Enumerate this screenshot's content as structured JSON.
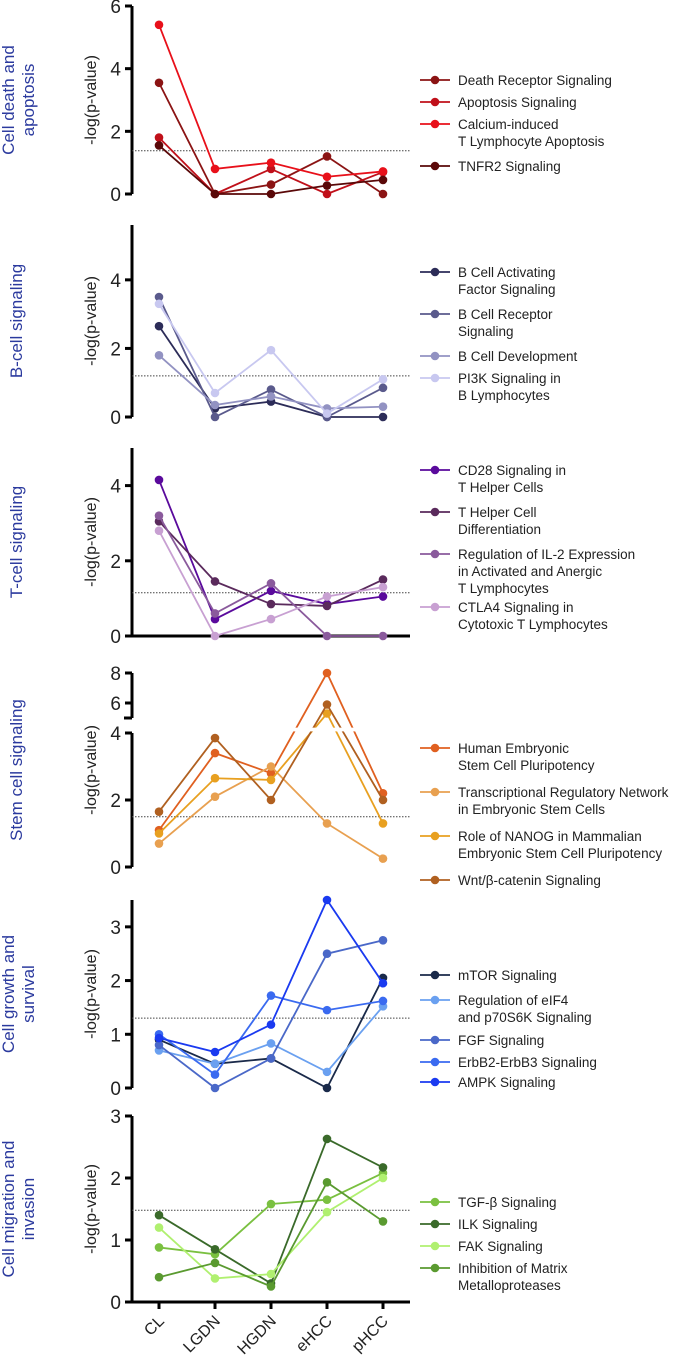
{
  "chart_data": [
    {
      "type": "line",
      "panel_title": "Cell death and apoptosis",
      "ylabel": "-log(p-value)",
      "categories": [
        "CL",
        "LGDN",
        "HGDN",
        "eHCC",
        "pHCC"
      ],
      "ylim": [
        0,
        6
      ],
      "yticks": [
        0,
        2,
        4,
        6
      ],
      "threshold": 1.38,
      "series": [
        {
          "name": "Death Receptor Signaling",
          "label_lines": [
            "Death Receptor Signaling"
          ],
          "color": "#8b1414",
          "values": [
            3.55,
            0,
            0.3,
            1.2,
            0
          ]
        },
        {
          "name": "Apoptosis Signaling",
          "label_lines": [
            "Apoptosis Signaling"
          ],
          "color": "#c0101a",
          "values": [
            1.8,
            0,
            0.8,
            0,
            0.7
          ]
        },
        {
          "name": "Calcium-induced T Lymphocyte Apoptosis",
          "label_lines": [
            "Calcium-induced",
            "T Lymphocyte Apoptosis"
          ],
          "color": "#e8101a",
          "values": [
            5.4,
            0.8,
            1.0,
            0.55,
            0.72
          ]
        },
        {
          "name": "TNFR2 Signaling",
          "label_lines": [
            "TNFR2 Signaling"
          ],
          "color": "#5a0808",
          "values": [
            1.55,
            0,
            0,
            0.27,
            0.45
          ]
        }
      ]
    },
    {
      "type": "line",
      "panel_title": "B-cell signaling",
      "ylabel": "-log(p-value)",
      "categories": [
        "CL",
        "LGDN",
        "HGDN",
        "eHCC",
        "pHCC"
      ],
      "ylim": [
        0,
        5.6
      ],
      "yticks": [
        0,
        2,
        4
      ],
      "threshold": 1.2,
      "series": [
        {
          "name": "B Cell Activating Factor Signaling",
          "label_lines": [
            "B Cell Activating",
            "Factor Signaling"
          ],
          "color": "#2c2c58",
          "values": [
            2.65,
            0.25,
            0.45,
            0,
            0
          ]
        },
        {
          "name": "B Cell Receptor Signaling",
          "label_lines": [
            "B Cell Receptor",
            "Signaling"
          ],
          "color": "#5a5a8c",
          "values": [
            3.5,
            0,
            0.8,
            0,
            0.85
          ]
        },
        {
          "name": "B Cell Development",
          "label_lines": [
            "B Cell Development"
          ],
          "color": "#9292c2",
          "values": [
            1.8,
            0.35,
            0.6,
            0.25,
            0.3
          ]
        },
        {
          "name": "PI3K Signaling in B Lymphocytes",
          "label_lines": [
            "PI3K Signaling in",
            "B Lymphocytes"
          ],
          "color": "#c8c8f0",
          "values": [
            3.3,
            0.7,
            1.95,
            0.1,
            1.1
          ]
        }
      ]
    },
    {
      "type": "line",
      "panel_title": "T-cell signaling",
      "ylabel": "-log(p-value)",
      "categories": [
        "CL",
        "LGDN",
        "HGDN",
        "eHCC",
        "pHCC"
      ],
      "ylim": [
        0,
        5
      ],
      "yticks": [
        0,
        2,
        4
      ],
      "threshold": 1.15,
      "series": [
        {
          "name": "CD28 Signaling in T Helper Cells",
          "label_lines": [
            "CD28 Signaling in",
            "T Helper Cells"
          ],
          "color": "#5a0a9c",
          "values": [
            4.15,
            0.45,
            1.2,
            0.85,
            1.05
          ]
        },
        {
          "name": "T Helper Cell Differentiation",
          "label_lines": [
            "T Helper Cell",
            "Differentiation"
          ],
          "color": "#5a2a5c",
          "values": [
            3.05,
            1.45,
            0.85,
            0.8,
            1.5
          ]
        },
        {
          "name": "Regulation of IL-2 Expression in Activated and Anergic T Lymphocytes",
          "label_lines": [
            "Regulation of IL-2 Expression",
            "in Activated and Anergic",
            "T Lymphocytes"
          ],
          "color": "#8a5a9c",
          "values": [
            3.2,
            0.6,
            1.4,
            0,
            0
          ]
        },
        {
          "name": "CTLA4 Signaling in Cytotoxic T Lymphocytes",
          "label_lines": [
            "CTLA4 Signaling in",
            "Cytotoxic T Lymphocytes"
          ],
          "color": "#c8a0d2",
          "values": [
            2.8,
            0,
            0.45,
            1.05,
            1.3
          ]
        }
      ]
    },
    {
      "type": "line",
      "panel_title": "Stem cell signaling",
      "ylabel": "-log(p-value)",
      "categories": [
        "CL",
        "LGDN",
        "HGDN",
        "eHCC",
        "pHCC"
      ],
      "ylim": [
        0,
        8
      ],
      "yticks": [
        0,
        2,
        4,
        6,
        8
      ],
      "axis_break": [
        4.1,
        5
      ],
      "threshold": 1.5,
      "series": [
        {
          "name": "Human Embryonic Stem Cell Pluripotency",
          "label_lines": [
            "Human Embryonic",
            "Stem Cell Pluripotency"
          ],
          "color": "#e06020",
          "values": [
            1.1,
            3.4,
            2.8,
            8.0,
            2.2
          ]
        },
        {
          "name": "Transcriptional Regulatory Network in Embryonic Stem Cells",
          "label_lines": [
            "Transcriptional Regulatory Network",
            "in Embryonic Stem Cells"
          ],
          "color": "#e8a050",
          "values": [
            0.7,
            2.1,
            3.0,
            1.3,
            0.25
          ]
        },
        {
          "name": "Role of NANOG in Mammalian Embryonic Stem Cell Pluripotency",
          "label_lines": [
            "Role of NANOG in Mammalian",
            "Embryonic Stem Cell Pluripotency"
          ],
          "color": "#e8a020",
          "values": [
            1.0,
            2.65,
            2.6,
            5.3,
            1.3
          ]
        },
        {
          "name": "Wnt/β-catenin Signaling",
          "label_lines": [
            "Wnt/β-catenin Signaling"
          ],
          "color": "#b06020",
          "values": [
            1.65,
            3.85,
            2.0,
            5.9,
            2.0
          ]
        }
      ]
    },
    {
      "type": "line",
      "panel_title": "Cell growth and survival",
      "ylabel": "-log(p-value)",
      "categories": [
        "CL",
        "LGDN",
        "HGDN",
        "eHCC",
        "pHCC"
      ],
      "ylim": [
        0,
        3.5
      ],
      "yticks": [
        0,
        1,
        2,
        3
      ],
      "threshold": 1.3,
      "series": [
        {
          "name": "mTOR Signaling",
          "label_lines": [
            "mTOR Signaling"
          ],
          "color": "#1a2a4a",
          "values": [
            0.9,
            0.45,
            0.55,
            0,
            2.05
          ]
        },
        {
          "name": "Regulation of eIF4 and p70S6K Signaling",
          "label_lines": [
            "Regulation of eIF4",
            "and p70S6K Signaling"
          ],
          "color": "#6aa0f0",
          "values": [
            0.7,
            0.45,
            0.83,
            0.3,
            1.52
          ]
        },
        {
          "name": "FGF Signaling",
          "label_lines": [
            "FGF Signaling"
          ],
          "color": "#4a68c8",
          "values": [
            0.8,
            0,
            0.55,
            2.5,
            2.75
          ]
        },
        {
          "name": "ErbB2-ErbB3 Signaling",
          "label_lines": [
            "ErbB2-ErbB3 Signaling"
          ],
          "color": "#3a6af0",
          "values": [
            1.0,
            0.25,
            1.72,
            1.45,
            1.62
          ]
        },
        {
          "name": "AMPK Signaling",
          "label_lines": [
            "AMPK Signaling"
          ],
          "color": "#1a3af0",
          "values": [
            0.93,
            0.67,
            1.18,
            3.5,
            1.95
          ]
        }
      ]
    },
    {
      "type": "line",
      "panel_title": "Cell migration and invasion",
      "ylabel": "-log(p-value)",
      "categories": [
        "CL",
        "LGDN",
        "HGDN",
        "eHCC",
        "pHCC"
      ],
      "ylim": [
        0,
        3
      ],
      "yticks": [
        0,
        1,
        2,
        3
      ],
      "threshold": 1.48,
      "series": [
        {
          "name": "TGF-β Signaling",
          "label_lines": [
            "TGF-β Signaling"
          ],
          "color": "#7ac040",
          "values": [
            0.88,
            0.77,
            1.58,
            1.65,
            2.08
          ]
        },
        {
          "name": "ILK Signaling",
          "label_lines": [
            "ILK Signaling"
          ],
          "color": "#3a6a2a",
          "values": [
            1.4,
            0.85,
            0.3,
            2.63,
            2.17
          ]
        },
        {
          "name": "FAK Signaling",
          "label_lines": [
            "FAK Signaling"
          ],
          "color": "#b0f070",
          "values": [
            1.2,
            0.38,
            0.45,
            1.45,
            2.0
          ]
        },
        {
          "name": "Inhibition of Matrix Metalloproteases",
          "label_lines": [
            "Inhibition of Matrix",
            "Metalloproteases"
          ],
          "color": "#5a9a30",
          "values": [
            0.4,
            0.63,
            0.25,
            1.93,
            1.3
          ]
        }
      ]
    }
  ],
  "panel_title_lines": [
    [
      "Cell death and",
      "apoptosis"
    ],
    [
      "B-cell signaling"
    ],
    [
      "T-cell signaling"
    ],
    [
      "Stem cell signaling"
    ],
    [
      "Cell growth and",
      "survival"
    ],
    [
      "Cell migration and",
      "invasion"
    ]
  ]
}
